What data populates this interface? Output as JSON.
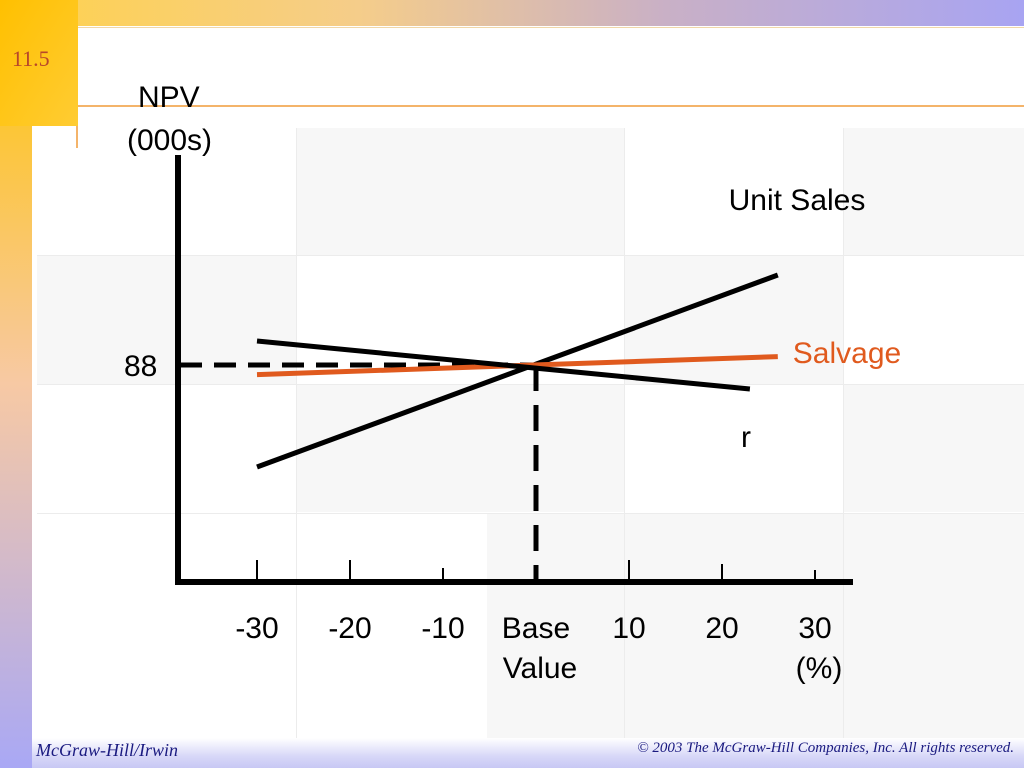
{
  "slide": {
    "number": "11.5",
    "footer_left": "McGraw-Hill/Irwin",
    "footer_right": "© 2003 The McGraw-Hill Companies, Inc. All rights reserved."
  },
  "colors": {
    "accent": "#e05a1e",
    "text": "#000000",
    "footer_text": "#1a1a80"
  },
  "chart_data": {
    "type": "line",
    "ylabel_line1": "NPV",
    "ylabel_line2": "(000s)",
    "base_npv_label": "88",
    "x_ticks": [
      "-30",
      "-20",
      "-10",
      "Base",
      "10",
      "20",
      "30"
    ],
    "x_tick_line2": [
      "",
      "",
      "",
      "Value",
      "",
      "",
      "(%)"
    ],
    "series": [
      {
        "name": "Unit Sales",
        "x": [
          -30,
          26
        ],
        "y": [
          -8.5,
          7.5
        ],
        "color": "#000000"
      },
      {
        "name": "Salvage",
        "x": [
          -30,
          26
        ],
        "y": [
          -0.8,
          0.7
        ],
        "color": "#e05a1e"
      },
      {
        "name": "r",
        "x": [
          -30,
          23
        ],
        "y": [
          2.0,
          -2.0
        ],
        "color": "#000000"
      }
    ],
    "base_point": {
      "x": 0,
      "y": 0
    }
  }
}
